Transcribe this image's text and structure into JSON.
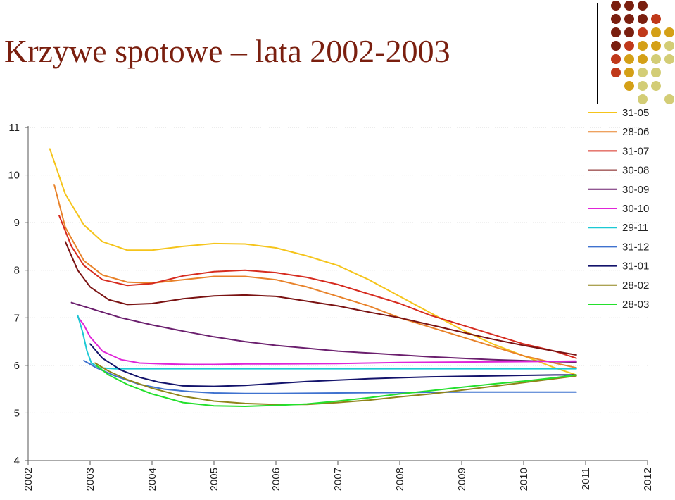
{
  "slide": {
    "title": "Krzywe spotowe – lata 2002-2003"
  },
  "decor_dots": {
    "palette": [
      "#7a1f0f",
      "#c0391a",
      "#d4a017",
      "#d3cd76"
    ]
  },
  "chart_data": {
    "type": "line",
    "title": "",
    "xlabel": "",
    "ylabel": "",
    "xlim": [
      2002,
      2012
    ],
    "ylim": [
      4,
      11
    ],
    "x_ticks": [
      "2002",
      "2003",
      "2004",
      "2005",
      "2006",
      "2007",
      "2008",
      "2009",
      "2010",
      "2011",
      "2012"
    ],
    "y_ticks": [
      "4",
      "5",
      "6",
      "7",
      "8",
      "9",
      "10",
      "11"
    ],
    "grid": true,
    "legend_position": "top-right",
    "series": [
      {
        "name": "31-05",
        "color": "#f5c41a",
        "x": [
          2002.35,
          2002.6,
          2002.9,
          2003.2,
          2003.6,
          2004.0,
          2004.5,
          2005.0,
          2005.5,
          2006.0,
          2006.5,
          2007.0,
          2007.5,
          2008.0,
          2008.5,
          2009.0,
          2009.5,
          2010.0,
          2010.5,
          2010.85
        ],
        "y": [
          10.55,
          9.6,
          8.95,
          8.6,
          8.42,
          8.42,
          8.5,
          8.56,
          8.55,
          8.47,
          8.3,
          8.1,
          7.8,
          7.45,
          7.1,
          6.75,
          6.45,
          6.2,
          5.95,
          5.8
        ]
      },
      {
        "name": "28-06",
        "color": "#e8822a",
        "x": [
          2002.42,
          2002.6,
          2002.9,
          2003.2,
          2003.6,
          2004.0,
          2004.5,
          2005.0,
          2005.5,
          2006.0,
          2006.5,
          2007.0,
          2007.5,
          2008.0,
          2008.5,
          2009.0,
          2009.5,
          2010.0,
          2010.5,
          2010.85
        ],
        "y": [
          9.8,
          8.9,
          8.2,
          7.9,
          7.75,
          7.73,
          7.8,
          7.87,
          7.87,
          7.8,
          7.65,
          7.45,
          7.25,
          7.0,
          6.8,
          6.6,
          6.4,
          6.2,
          6.05,
          5.95
        ]
      },
      {
        "name": "31-07",
        "color": "#d62b1f",
        "x": [
          2002.5,
          2002.7,
          2002.9,
          2003.2,
          2003.6,
          2004.0,
          2004.5,
          2005.0,
          2005.5,
          2006.0,
          2006.5,
          2007.0,
          2007.5,
          2008.0,
          2008.5,
          2009.0,
          2009.5,
          2010.0,
          2010.5,
          2010.85
        ],
        "y": [
          9.15,
          8.5,
          8.1,
          7.8,
          7.68,
          7.72,
          7.88,
          7.97,
          8.0,
          7.95,
          7.85,
          7.7,
          7.5,
          7.3,
          7.05,
          6.85,
          6.65,
          6.45,
          6.3,
          6.15
        ]
      },
      {
        "name": "30-08",
        "color": "#7a1212",
        "x": [
          2002.6,
          2002.8,
          2003.0,
          2003.3,
          2003.6,
          2004.0,
          2004.5,
          2005.0,
          2005.5,
          2006.0,
          2006.5,
          2007.0,
          2007.5,
          2008.0,
          2008.5,
          2009.0,
          2009.5,
          2010.0,
          2010.5,
          2010.85
        ],
        "y": [
          8.6,
          8.0,
          7.65,
          7.38,
          7.28,
          7.3,
          7.4,
          7.46,
          7.48,
          7.45,
          7.35,
          7.25,
          7.12,
          7.0,
          6.85,
          6.7,
          6.55,
          6.42,
          6.3,
          6.22
        ]
      },
      {
        "name": "30-09",
        "color": "#6b1f6e",
        "x": [
          2002.7,
          2003.0,
          2003.5,
          2004.0,
          2004.5,
          2005.0,
          2005.5,
          2006.0,
          2006.5,
          2007.0,
          2007.5,
          2008.0,
          2008.5,
          2009.0,
          2009.5,
          2010.0,
          2010.5,
          2010.85
        ],
        "y": [
          7.32,
          7.2,
          7.0,
          6.85,
          6.72,
          6.6,
          6.5,
          6.42,
          6.36,
          6.3,
          6.26,
          6.22,
          6.18,
          6.15,
          6.12,
          6.1,
          6.08,
          6.07
        ]
      },
      {
        "name": "30-10",
        "color": "#e024d8",
        "x": [
          2002.8,
          2002.9,
          2003.0,
          2003.2,
          2003.5,
          2003.8,
          2004.2,
          2004.6,
          2005.0,
          2005.5,
          2006.0,
          2007.0,
          2008.0,
          2009.0,
          2010.0,
          2010.85
        ],
        "y": [
          7.02,
          6.85,
          6.6,
          6.3,
          6.12,
          6.05,
          6.03,
          6.02,
          6.02,
          6.03,
          6.03,
          6.04,
          6.06,
          6.07,
          6.08,
          6.09
        ]
      },
      {
        "name": "29-11",
        "color": "#1cc9d4",
        "x": [
          2002.8,
          2002.88,
          2002.95,
          2003.02,
          2003.15,
          2003.4,
          2003.8,
          2004.5,
          2005.5,
          2006.5,
          2007.5,
          2008.5,
          2009.5,
          2010.85
        ],
        "y": [
          7.05,
          6.7,
          6.3,
          6.05,
          5.95,
          5.93,
          5.93,
          5.93,
          5.93,
          5.93,
          5.93,
          5.93,
          5.93,
          5.93
        ]
      },
      {
        "name": "31-12",
        "color": "#3f72cf",
        "x": [
          2002.9,
          2003.1,
          2003.4,
          2003.8,
          2004.2,
          2004.6,
          2005.0,
          2005.5,
          2006.0,
          2007.0,
          2008.0,
          2009.0,
          2010.0,
          2010.85
        ],
        "y": [
          6.1,
          5.95,
          5.78,
          5.6,
          5.5,
          5.45,
          5.42,
          5.41,
          5.41,
          5.42,
          5.43,
          5.44,
          5.44,
          5.44
        ]
      },
      {
        "name": "31-01",
        "color": "#13136b",
        "x": [
          2003.0,
          2003.2,
          2003.5,
          2003.8,
          2004.1,
          2004.5,
          2005.0,
          2005.5,
          2006.0,
          2006.5,
          2007.0,
          2007.5,
          2008.0,
          2008.5,
          2009.0,
          2009.5,
          2010.0,
          2010.5,
          2010.85
        ],
        "y": [
          6.45,
          6.15,
          5.9,
          5.75,
          5.65,
          5.57,
          5.56,
          5.58,
          5.62,
          5.66,
          5.69,
          5.72,
          5.74,
          5.76,
          5.77,
          5.78,
          5.79,
          5.8,
          5.8
        ]
      },
      {
        "name": "28-02",
        "color": "#8f8419",
        "x": [
          2003.08,
          2003.3,
          2003.6,
          2004.0,
          2004.5,
          2005.0,
          2005.5,
          2006.0,
          2006.5,
          2007.0,
          2007.5,
          2008.0,
          2008.5,
          2009.0,
          2009.5,
          2010.0,
          2010.5,
          2010.85
        ],
        "y": [
          6.05,
          5.88,
          5.7,
          5.52,
          5.35,
          5.25,
          5.2,
          5.18,
          5.18,
          5.22,
          5.27,
          5.34,
          5.4,
          5.48,
          5.56,
          5.64,
          5.72,
          5.78
        ]
      },
      {
        "name": "28-03",
        "color": "#23e02c",
        "x": [
          2003.1,
          2003.3,
          2003.6,
          2004.0,
          2004.5,
          2005.0,
          2005.5,
          2006.0,
          2006.5,
          2007.0,
          2007.5,
          2008.0,
          2008.5,
          2009.0,
          2009.5,
          2010.0,
          2010.5,
          2010.85
        ],
        "y": [
          6.0,
          5.8,
          5.6,
          5.4,
          5.22,
          5.15,
          5.14,
          5.16,
          5.19,
          5.25,
          5.32,
          5.4,
          5.47,
          5.54,
          5.61,
          5.67,
          5.74,
          5.8
        ]
      }
    ]
  }
}
